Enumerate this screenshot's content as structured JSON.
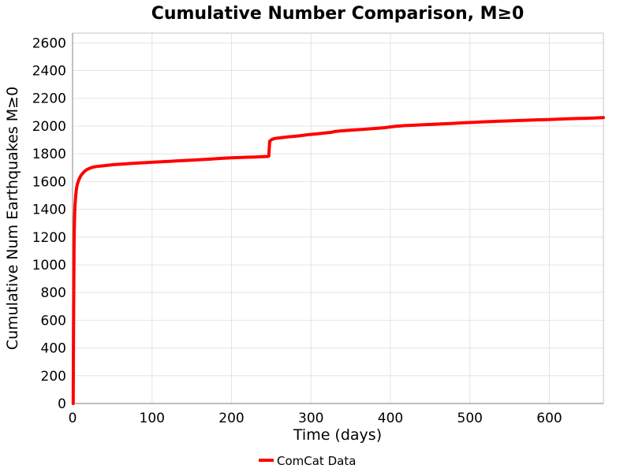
{
  "colors": {
    "line": "#ff0000",
    "grid": "#e4e4e4",
    "box": "#c6c6c6",
    "axis": "#999999",
    "text": "#000000",
    "background": "#ffffff"
  },
  "chart_data": {
    "type": "line",
    "title": "Cumulative Number Comparison, M≥0",
    "xlabel": "Time (days)",
    "ylabel": "Cumulative Num Earthquakes M≥0",
    "xlim": [
      0,
      668
    ],
    "ylim": [
      0,
      2670
    ],
    "xticks": [
      0,
      100,
      200,
      300,
      400,
      500,
      600
    ],
    "yticks": [
      0,
      200,
      400,
      600,
      800,
      1000,
      1200,
      1400,
      1600,
      1800,
      2000,
      2200,
      2400,
      2600
    ],
    "grid": true,
    "legend": {
      "position": "bottom-center",
      "entries": [
        {
          "label": "ComCat Data",
          "color": "#ff0000"
        }
      ]
    },
    "series": [
      {
        "name": "ComCat Data",
        "color": "#ff0000",
        "points": [
          [
            0.8,
            0
          ],
          [
            1.2,
            500
          ],
          [
            1.6,
            900
          ],
          [
            2,
            1200
          ],
          [
            2.5,
            1330
          ],
          [
            3,
            1420
          ],
          [
            4,
            1500
          ],
          [
            5,
            1550
          ],
          [
            6,
            1580
          ],
          [
            8,
            1615
          ],
          [
            10,
            1638
          ],
          [
            12,
            1655
          ],
          [
            15,
            1673
          ],
          [
            18,
            1686
          ],
          [
            22,
            1697
          ],
          [
            26,
            1704
          ],
          [
            30,
            1708
          ],
          [
            36,
            1712
          ],
          [
            44,
            1717
          ],
          [
            52,
            1722
          ],
          [
            62,
            1726
          ],
          [
            72,
            1730
          ],
          [
            82,
            1733
          ],
          [
            92,
            1736
          ],
          [
            102,
            1740
          ],
          [
            112,
            1743
          ],
          [
            122,
            1746
          ],
          [
            132,
            1749
          ],
          [
            142,
            1752
          ],
          [
            152,
            1755
          ],
          [
            162,
            1758
          ],
          [
            172,
            1761
          ],
          [
            182,
            1765
          ],
          [
            190,
            1768
          ],
          [
            200,
            1771
          ],
          [
            210,
            1773
          ],
          [
            220,
            1775
          ],
          [
            230,
            1777
          ],
          [
            240,
            1779
          ],
          [
            246,
            1781
          ],
          [
            247,
            1784
          ],
          [
            248,
            1890
          ],
          [
            250,
            1901
          ],
          [
            253,
            1908
          ],
          [
            257,
            1913
          ],
          [
            263,
            1917
          ],
          [
            270,
            1921
          ],
          [
            278,
            1925
          ],
          [
            285,
            1929
          ],
          [
            291,
            1934
          ],
          [
            298,
            1939
          ],
          [
            306,
            1943
          ],
          [
            314,
            1948
          ],
          [
            321,
            1952
          ],
          [
            326,
            1955
          ],
          [
            329,
            1960
          ],
          [
            336,
            1964
          ],
          [
            344,
            1968
          ],
          [
            354,
            1972
          ],
          [
            364,
            1976
          ],
          [
            374,
            1980
          ],
          [
            384,
            1984
          ],
          [
            392,
            1988
          ],
          [
            400,
            1994
          ],
          [
            408,
            1999
          ],
          [
            418,
            2003
          ],
          [
            430,
            2006
          ],
          [
            442,
            2010
          ],
          [
            454,
            2013
          ],
          [
            466,
            2016
          ],
          [
            478,
            2019
          ],
          [
            490,
            2023
          ],
          [
            502,
            2026
          ],
          [
            514,
            2029
          ],
          [
            526,
            2032
          ],
          [
            538,
            2035
          ],
          [
            550,
            2037
          ],
          [
            562,
            2040
          ],
          [
            574,
            2042
          ],
          [
            586,
            2045
          ],
          [
            598,
            2047
          ],
          [
            610,
            2049
          ],
          [
            622,
            2052
          ],
          [
            634,
            2054
          ],
          [
            646,
            2056
          ],
          [
            656,
            2058
          ],
          [
            668,
            2061
          ]
        ]
      }
    ]
  }
}
